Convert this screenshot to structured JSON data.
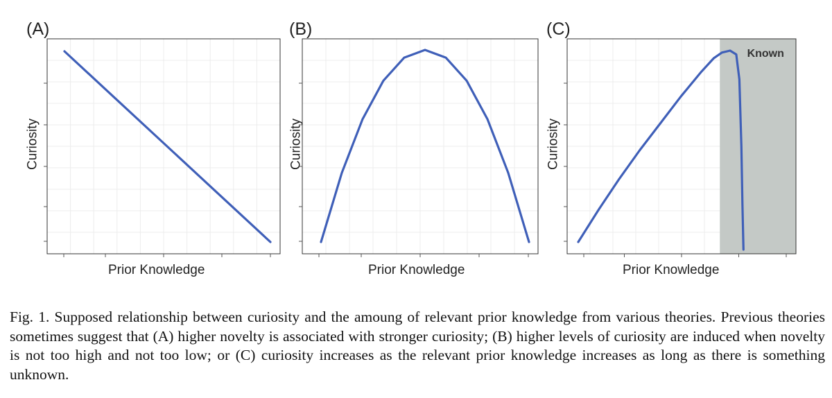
{
  "chart_data": [
    {
      "type": "line",
      "panel_label": "(A)",
      "title": "",
      "xlabel": "Prior Knowledge",
      "ylabel": "Curiosity",
      "xlim": [
        0,
        1
      ],
      "ylim": [
        0,
        1
      ],
      "grid": true,
      "series": [
        {
          "color": "#3f5fb8",
          "x": [
            0.0,
            0.25,
            0.5,
            0.75,
            1.0
          ],
          "y": [
            1.0,
            0.75,
            0.5,
            0.25,
            0.0
          ]
        }
      ]
    },
    {
      "type": "line",
      "panel_label": "(B)",
      "title": "",
      "xlabel": "Prior Knowledge",
      "ylabel": "Curiosity",
      "xlim": [
        0,
        1
      ],
      "ylim": [
        0,
        1
      ],
      "grid": true,
      "series": [
        {
          "color": "#3f5fb8",
          "x": [
            0.0,
            0.1,
            0.2,
            0.3,
            0.4,
            0.5,
            0.6,
            0.7,
            0.8,
            0.9,
            1.0
          ],
          "y": [
            0.0,
            0.36,
            0.64,
            0.84,
            0.96,
            1.0,
            0.96,
            0.84,
            0.64,
            0.36,
            0.0
          ]
        }
      ]
    },
    {
      "type": "line",
      "panel_label": "(C)",
      "title": "",
      "xlabel": "Prior Knowledge",
      "ylabel": "Curiosity",
      "xlim": [
        0,
        1
      ],
      "ylim": [
        0,
        1
      ],
      "grid": true,
      "shaded_region": {
        "label": "Known",
        "x_start": 0.69,
        "x_end": 1.05,
        "color": "#c4c9c6"
      },
      "series": [
        {
          "color": "#3f5fb8",
          "x": [
            0.0,
            0.1,
            0.2,
            0.3,
            0.4,
            0.5,
            0.6,
            0.66,
            0.7,
            0.74,
            0.77,
            0.785,
            0.795,
            0.8,
            0.805
          ],
          "y": [
            0.0,
            0.17,
            0.33,
            0.48,
            0.62,
            0.76,
            0.89,
            0.96,
            0.99,
            1.0,
            0.98,
            0.85,
            0.5,
            0.2,
            -0.04
          ]
        }
      ]
    }
  ],
  "caption": "Fig. 1. Supposed relationship between curiosity and the amoung of relevant prior knowledge from various theories. Previous theories sometimes suggest that (A) higher novelty is associated with stronger curiosity; (B) higher levels of curiosity are induced when novelty is not too high and not too low; or (C) curiosity increases as the relevant prior knowledge increases as long as there is something unknown."
}
